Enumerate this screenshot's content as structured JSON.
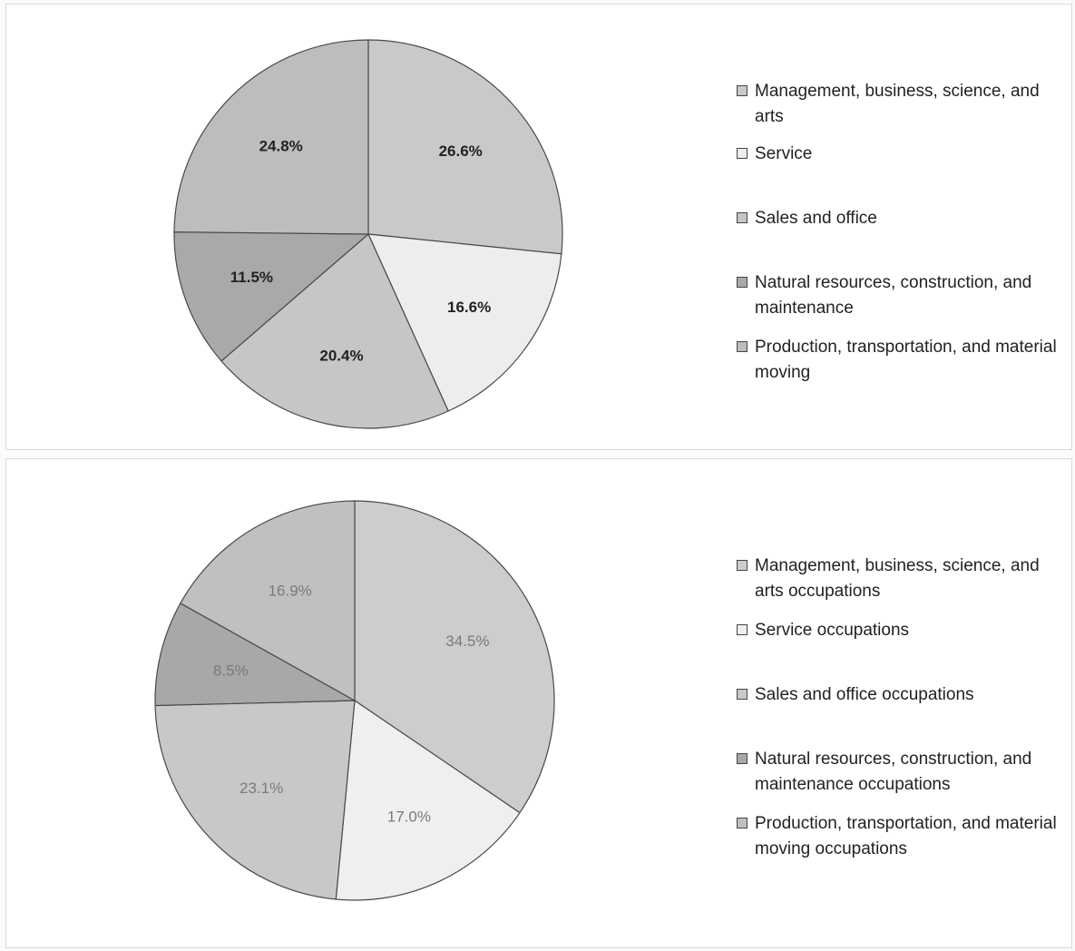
{
  "chart_data": [
    {
      "type": "pie",
      "title": "",
      "slices": [
        {
          "label": "Management, business, science, and arts",
          "value": 26.6,
          "display": "26.6%",
          "color": "#c9c9c9",
          "label_color": "#222222"
        },
        {
          "label": "Service",
          "value": 16.6,
          "display": "16.6%",
          "color": "#ededed",
          "label_color": "#222222"
        },
        {
          "label": "Sales and office",
          "value": 20.4,
          "display": "20.4%",
          "color": "#c6c6c6",
          "label_color": "#222222"
        },
        {
          "label": "Natural resources, construction, and maintenance",
          "value": 11.5,
          "display": "11.5%",
          "color": "#a9a9a9",
          "label_color": "#222222"
        },
        {
          "label": "Production, transportation, and material moving",
          "value": 24.8,
          "display": "24.8%",
          "color": "#bdbdbd",
          "label_color": "#222222"
        }
      ],
      "legend": {
        "placement": "right",
        "items": [
          "Management, business, science, and arts",
          "Service",
          "Sales and office",
          "Natural resources, construction, and maintenance",
          "Production, transportation, and material moving"
        ]
      }
    },
    {
      "type": "pie",
      "title": "",
      "slices": [
        {
          "label": "Management, business, science, and arts occupations",
          "value": 34.5,
          "display": "34.5%",
          "color": "#cdcdcd",
          "label_color": "#7a7a7a"
        },
        {
          "label": "Service occupations",
          "value": 17.0,
          "display": "17.0%",
          "color": "#efefef",
          "label_color": "#7a7a7a"
        },
        {
          "label": "Sales and office occupations",
          "value": 23.1,
          "display": "23.1%",
          "color": "#c8c8c8",
          "label_color": "#7a7a7a"
        },
        {
          "label": "Natural resources, construction, and maintenance occupations",
          "value": 8.5,
          "display": "8.5%",
          "color": "#a8a8a8",
          "label_color": "#7a7a7a"
        },
        {
          "label": "Production, transportation, and material moving occupations",
          "value": 16.9,
          "display": "16.9%",
          "color": "#c0c0c0",
          "label_color": "#7a7a7a"
        }
      ],
      "legend": {
        "placement": "right",
        "items": [
          "Management, business, science, and arts occupations",
          "Service occupations",
          "Sales and office occupations",
          "Natural resources, construction, and maintenance occupations",
          "Production, transportation, and material moving occupations"
        ]
      }
    }
  ]
}
